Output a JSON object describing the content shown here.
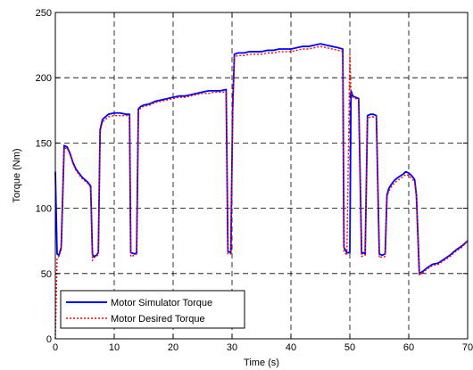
{
  "chart_data": {
    "type": "line",
    "title": "",
    "xlabel": "Time (s)",
    "ylabel": "Torque (Nm)",
    "xlim": [
      0,
      70
    ],
    "ylim": [
      0,
      250
    ],
    "xticks": [
      0,
      10,
      20,
      30,
      40,
      50,
      60,
      70
    ],
    "yticks": [
      0,
      50,
      100,
      150,
      200,
      250
    ],
    "xtick_labels": [
      "0",
      "10",
      "20",
      "30",
      "40",
      "50",
      "60",
      "70"
    ],
    "ytick_labels": [
      "0",
      "50",
      "100",
      "150",
      "200",
      "250"
    ],
    "grid": true,
    "legend_position": "bottom-left",
    "series": [
      {
        "name": "Motor Simulator Torque",
        "color": "#0000ff",
        "style": "solid",
        "x": [
          0,
          0.3,
          0.6,
          1.0,
          1.5,
          2.0,
          2.5,
          3.0,
          3.5,
          4.0,
          4.5,
          5.0,
          5.5,
          6.0,
          6.3,
          6.5,
          7.0,
          7.3,
          7.6,
          8.0,
          9.0,
          10.0,
          11.0,
          12.0,
          12.6,
          12.8,
          13.5,
          13.8,
          14.1,
          14.5,
          15,
          16,
          17,
          18,
          19,
          20,
          21,
          22,
          23,
          24,
          25,
          26,
          27,
          28,
          29,
          29.3,
          29.8,
          30.1,
          30.4,
          31,
          32,
          33,
          34,
          35,
          36,
          37,
          38,
          39,
          40,
          41,
          42,
          43,
          44,
          45,
          46,
          47,
          48,
          48.8,
          49.0,
          49.5,
          50.0,
          50.2,
          50.5,
          51,
          51.5,
          52.0,
          52.3,
          52.6,
          53.0,
          53.5,
          54.0,
          54.5,
          55.0,
          55.5,
          56.0,
          56.3,
          56.6,
          57.0,
          57.5,
          58.0,
          59.0,
          59.5,
          60.0,
          60.5,
          61.0,
          61.3,
          61.8,
          62.5,
          63.0,
          64.0,
          65.0,
          66.0,
          67.0,
          68.0,
          69.0,
          70.0
        ],
        "y": [
          128,
          65,
          64,
          70,
          148,
          147,
          142,
          135,
          130,
          127,
          124,
          122,
          120,
          117,
          65,
          63,
          64,
          66,
          160,
          168,
          172,
          173,
          173,
          172,
          172,
          66,
          65,
          66,
          176,
          178,
          179,
          180,
          182,
          183,
          184,
          185,
          186,
          186,
          187,
          188,
          189,
          190,
          190,
          190,
          191,
          67,
          66,
          175,
          218,
          219,
          219,
          220,
          220,
          220,
          221,
          221,
          222,
          222,
          222,
          223,
          224,
          224,
          225,
          226,
          225,
          224,
          223,
          222,
          70,
          66,
          66,
          190,
          186,
          185,
          184,
          65,
          66,
          65,
          171,
          172,
          172,
          171,
          65,
          64,
          65,
          110,
          115,
          118,
          121,
          123,
          126,
          128,
          127,
          125,
          122,
          110,
          50,
          52,
          54,
          57,
          58,
          61,
          64,
          68,
          71,
          75
        ]
      },
      {
        "name": "Motor Desired Torque",
        "color": "#ff0000",
        "style": "dotted",
        "x": [
          0,
          0.3,
          0.6,
          1.0,
          1.5,
          2.0,
          2.5,
          3.0,
          3.5,
          4.0,
          4.5,
          5.0,
          5.5,
          6.0,
          6.3,
          6.5,
          7.0,
          7.3,
          7.6,
          8.0,
          9.0,
          10.0,
          11.0,
          12.0,
          12.6,
          12.8,
          13.5,
          13.8,
          14.1,
          14.5,
          15,
          16,
          17,
          18,
          19,
          20,
          21,
          22,
          23,
          24,
          25,
          26,
          27,
          28,
          29,
          29.3,
          29.8,
          30.1,
          30.4,
          31,
          32,
          33,
          34,
          35,
          36,
          37,
          38,
          39,
          40,
          41,
          42,
          43,
          44,
          45,
          46,
          47,
          48,
          48.8,
          49.0,
          49.5,
          50.0,
          50.2,
          50.5,
          51,
          51.5,
          52.0,
          52.3,
          52.6,
          53.0,
          53.5,
          54.0,
          54.5,
          55.0,
          55.5,
          56.0,
          56.3,
          56.6,
          57.0,
          57.5,
          58.0,
          59.0,
          59.5,
          60.0,
          60.5,
          61.0,
          61.3,
          61.8,
          62.5,
          63.0,
          64.0,
          65.0,
          66.0,
          67.0,
          68.0,
          69.0,
          70.0
        ],
        "y": [
          0,
          62,
          63,
          68,
          146,
          146,
          141,
          134,
          129,
          126,
          123,
          121,
          119,
          116,
          60,
          62,
          63,
          65,
          158,
          166,
          170,
          171,
          171,
          171,
          171,
          63,
          64,
          65,
          174,
          177,
          178,
          179,
          181,
          182,
          183,
          184,
          185,
          185,
          186,
          187,
          188,
          188,
          189,
          189,
          189,
          65,
          65,
          172,
          216,
          217,
          217,
          218,
          218,
          218,
          219,
          219,
          220,
          220,
          220,
          221,
          222,
          222,
          223,
          224,
          223,
          222,
          221,
          220,
          67,
          64,
          218,
          188,
          185,
          184,
          183,
          63,
          64,
          64,
          169,
          170,
          170,
          170,
          62,
          63,
          63,
          108,
          113,
          116,
          119,
          121,
          124,
          126,
          125,
          123,
          120,
          108,
          49,
          51,
          53,
          56,
          57,
          60,
          63,
          67,
          70,
          75
        ]
      }
    ]
  }
}
